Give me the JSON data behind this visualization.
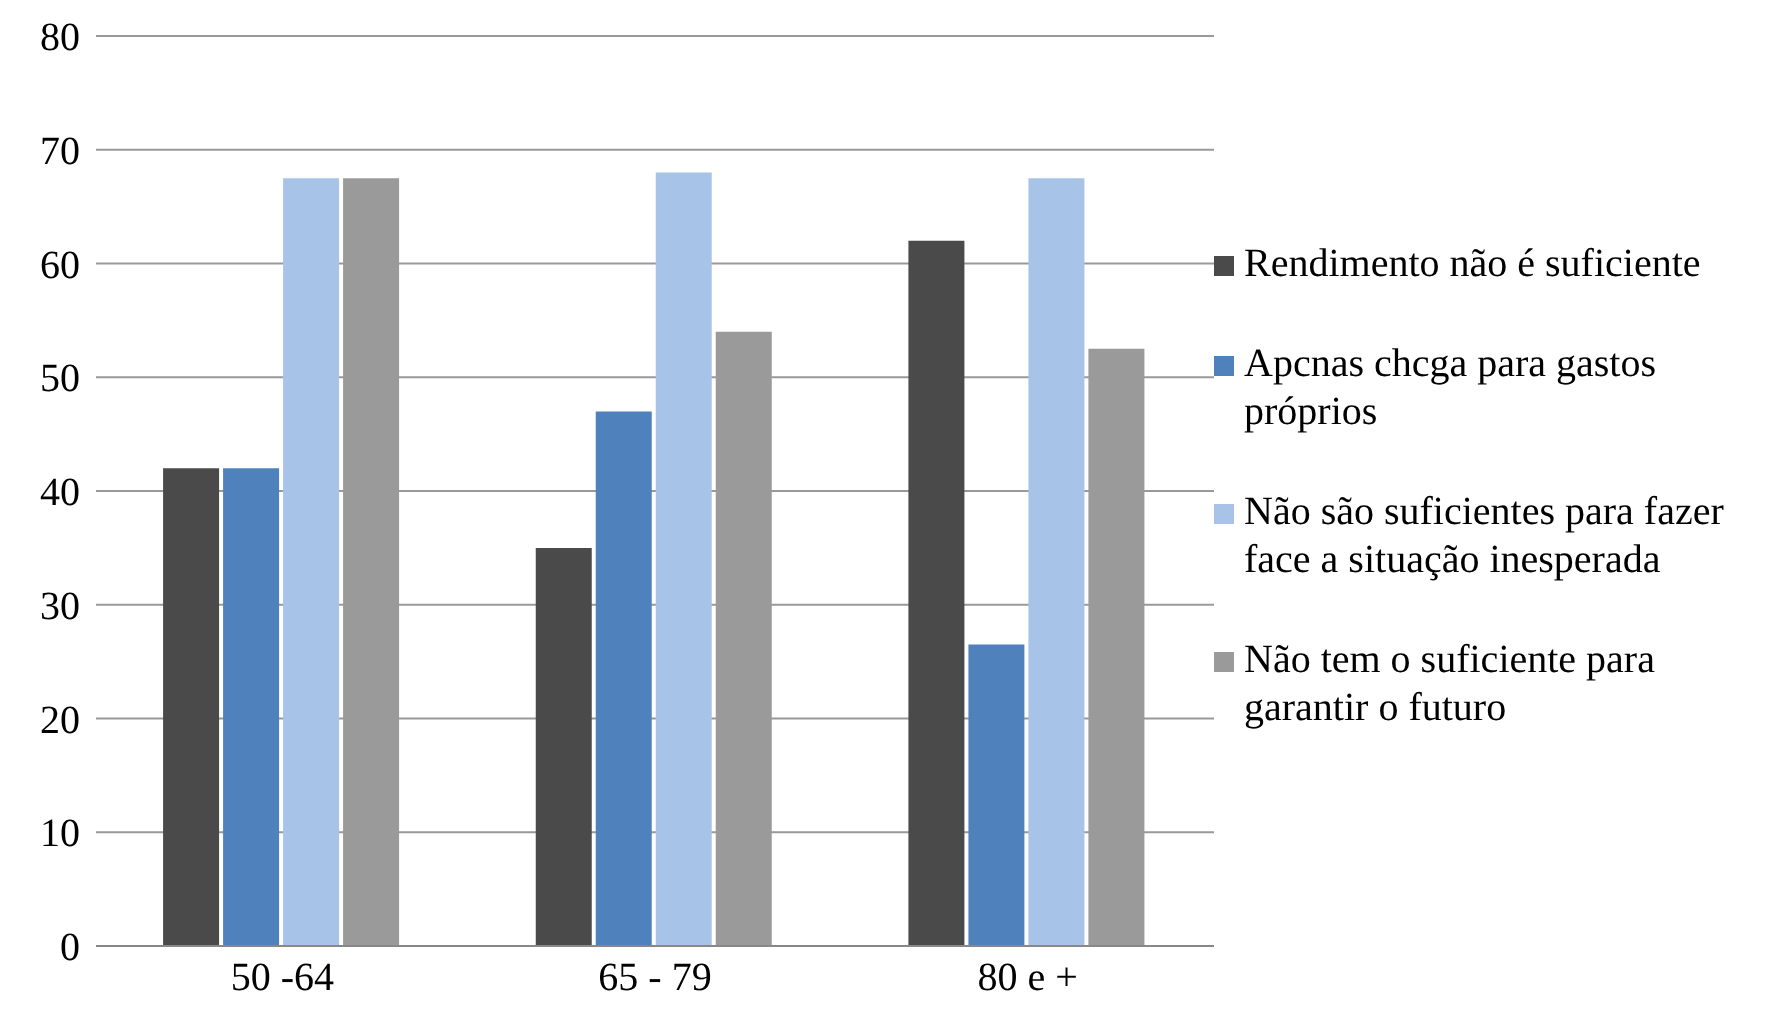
{
  "chart_data": {
    "type": "bar",
    "categories": [
      "50 -64",
      "65 - 79",
      "80 e +"
    ],
    "series": [
      {
        "name": "Rendimento não é suficiente",
        "color": "#4a4a4a",
        "values": [
          42,
          35,
          62
        ]
      },
      {
        "name": "Apcnas chcga para gastos próprios",
        "color": "#4f81bd",
        "values": [
          42,
          47,
          26.5
        ]
      },
      {
        "name": "Não são suficientes para fazer face a situação inesperada",
        "color": "#a7c4e8",
        "values": [
          67.5,
          68,
          67.5
        ]
      },
      {
        "name": "Não tem o suficiente para garantir o futuro",
        "color": "#9a9a9a",
        "values": [
          67.5,
          54,
          52.5
        ]
      }
    ],
    "ylim": [
      0,
      80
    ],
    "yticks": [
      0,
      10,
      20,
      30,
      40,
      50,
      60,
      70,
      80
    ],
    "grid": "y",
    "legend": "right"
  }
}
